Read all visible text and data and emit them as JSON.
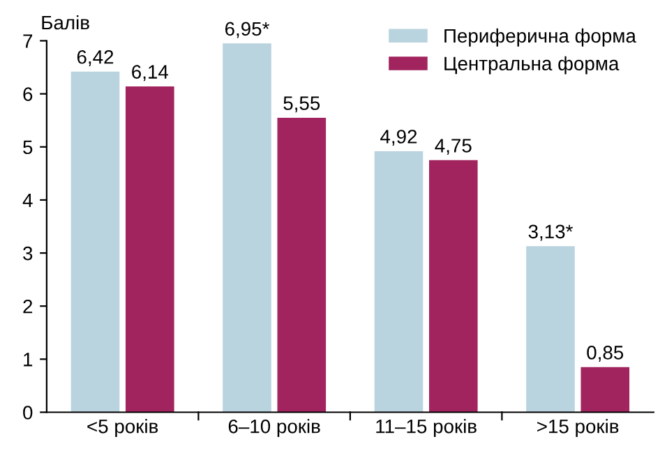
{
  "chart_data": {
    "type": "bar",
    "ylabel": "Балів",
    "categories": [
      "<5 років",
      "6–10 років",
      "11–15 років",
      ">15 років"
    ],
    "series": [
      {
        "name": "Периферична форма",
        "color": "#b9d3df",
        "values": [
          6.42,
          6.95,
          4.92,
          3.13
        ],
        "value_labels": [
          "6,42",
          "6,95*",
          "4,92",
          "3,13*"
        ]
      },
      {
        "name": "Центральна форма",
        "color": "#a2245e",
        "values": [
          6.14,
          5.55,
          4.75,
          0.85
        ],
        "value_labels": [
          "6,14",
          "5,55",
          "4,75",
          "0,85"
        ]
      }
    ],
    "ylim": [
      0,
      7
    ],
    "yticks": [
      0,
      1,
      2,
      3,
      4,
      5,
      6,
      7
    ],
    "grid": false,
    "legend": "top right"
  }
}
